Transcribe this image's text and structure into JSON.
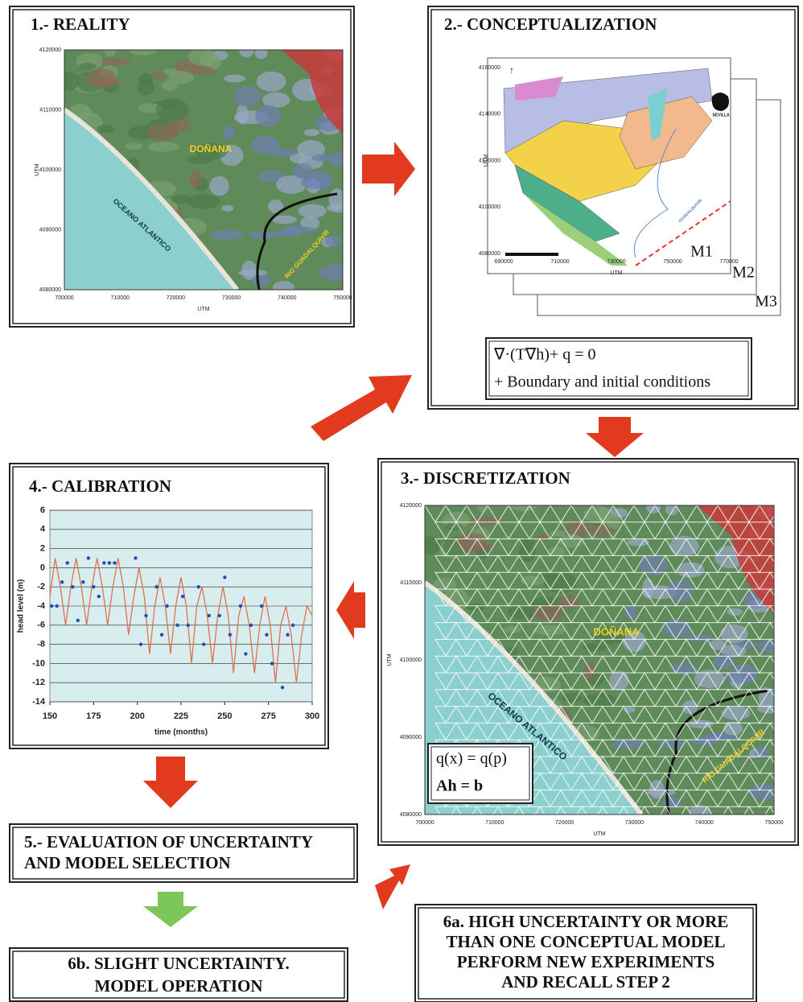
{
  "reality": {
    "title": "1.- REALITY",
    "map": {
      "labels": [
        "DOÑANA",
        "OCEANO ATLANTICO",
        "RIO GUADALQUIVIR"
      ],
      "xlabel": "UTM",
      "ylabel": "UTM",
      "xticks": [
        700000,
        710000,
        720000,
        730000,
        740000,
        750000
      ],
      "yticks": [
        4080000,
        4090000,
        4100000,
        4110000,
        4120000
      ]
    }
  },
  "conceptualization": {
    "title": "2.- CONCEPTUALIZATION",
    "map": {
      "xlabel": "UTM",
      "ylabel": "UTM",
      "city": "SEVILLA",
      "river": "GUADALQUIVIR",
      "xticks": [
        690000,
        710000,
        730000,
        750000,
        770000
      ],
      "yticks": [
        4080000,
        4100000,
        4120000,
        4140000,
        4160000
      ]
    },
    "models": [
      "M1",
      "M2",
      "M3"
    ],
    "equation": "∇·(T∇h)+ q = 0",
    "conditions": "+ Boundary and initial conditions"
  },
  "discretization": {
    "title": "3.- DISCRETIZATION",
    "map": {
      "labels": [
        "DOÑANA",
        "OCEANO ATLANTICO",
        "RIO GUADALQUIVIR"
      ],
      "xlabel": "UTM",
      "ylabel": "UTM",
      "xticks": [
        700000,
        710000,
        720000,
        730000,
        740000,
        750000
      ],
      "yticks": [
        4080000,
        4090000,
        4100000,
        4110000,
        4120000
      ]
    },
    "equations": [
      "q(x) = q(p)",
      "Ah = b"
    ]
  },
  "calibration": {
    "title": "4.- CALIBRATION",
    "chart": {
      "xlabel": "time (months)",
      "ylabel": "head level (m)",
      "xlim": [
        150,
        300
      ],
      "ylim": [
        -14,
        6
      ],
      "xticks": [
        150,
        175,
        200,
        225,
        250,
        275,
        300
      ],
      "yticks": [
        -14,
        -12,
        -10,
        -8,
        -6,
        -4,
        -2,
        0,
        2,
        4,
        6
      ],
      "grid": true,
      "simulated": {
        "color": "#e07050",
        "x": [
          150,
          153,
          156,
          159,
          162,
          165,
          168,
          171,
          174,
          177,
          180,
          183,
          186,
          189,
          192,
          195,
          198,
          201,
          204,
          207,
          210,
          213,
          216,
          219,
          222,
          225,
          228,
          231,
          234,
          237,
          240,
          243,
          246,
          249,
          252,
          255,
          258,
          261,
          264,
          267,
          270,
          273,
          276,
          279,
          282,
          285,
          288,
          291,
          294,
          297,
          300
        ],
        "values": [
          -3,
          1,
          -2,
          -6,
          -2,
          1,
          -2,
          -6,
          -2,
          1,
          -2,
          -6,
          -2,
          1,
          -2,
          -7,
          -3,
          0,
          -3,
          -9,
          -4,
          -1,
          -4,
          -9,
          -4,
          -1,
          -4,
          -10,
          -4,
          -2,
          -5,
          -10,
          -5,
          -2,
          -5,
          -11,
          -5,
          -3,
          -6,
          -11,
          -6,
          -3,
          -6,
          -12,
          -6,
          -4,
          -7,
          -12,
          -7,
          -4,
          -5
        ]
      },
      "observed": {
        "color": "#1f4fb4",
        "x": [
          151,
          154,
          157,
          160,
          163,
          166,
          169,
          172,
          175,
          178,
          181,
          184,
          187,
          199,
          202,
          205,
          211,
          214,
          217,
          223,
          226,
          229,
          235,
          238,
          241,
          247,
          250,
          253,
          259,
          262,
          265,
          271,
          274,
          277,
          283,
          286,
          289
        ],
        "values": [
          -4,
          -4,
          -1.5,
          0.5,
          -2,
          -5.5,
          -1.5,
          1,
          -2,
          -3,
          0.5,
          0.5,
          0.5,
          1,
          -8,
          -5,
          -2,
          -7,
          -4,
          -6,
          -3,
          -6,
          -2,
          -8,
          -5,
          -5,
          -1,
          -7,
          -4,
          -9,
          -6,
          -4,
          -7,
          -10,
          -12.5,
          -7,
          -6
        ]
      }
    }
  },
  "evaluation": {
    "lines": [
      "5.- EVALUATION OF UNCERTAINTY",
      "AND MODEL SELECTION"
    ]
  },
  "step6a": {
    "lines": [
      "6a. HIGH UNCERTAINTY OR MORE",
      "THAN ONE CONCEPTUAL MODEL",
      "PERFORM NEW EXPERIMENTS",
      "AND RECALL STEP 2"
    ]
  },
  "step6b": {
    "lines": [
      "6b. SLIGHT UNCERTAINTY.",
      "MODEL OPERATION"
    ]
  }
}
